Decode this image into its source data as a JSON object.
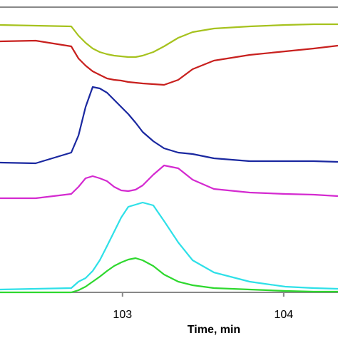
{
  "chart_data": {
    "type": "line",
    "x_label": "Time, min",
    "xlim": [
      102.24,
      104.337
    ],
    "xticks": [
      103,
      104
    ],
    "ylim": [
      0,
      100
    ],
    "x": [
      102.24,
      102.461,
      102.682,
      102.727,
      102.771,
      102.815,
      102.859,
      102.904,
      102.948,
      102.992,
      103.036,
      103.081,
      103.125,
      103.191,
      103.258,
      103.346,
      103.435,
      103.567,
      103.789,
      104.01,
      104.187,
      104.337
    ],
    "series": [
      {
        "color": "#a6c21e",
        "values": [
          93.75,
          93.5,
          93.25,
          90,
          87.5,
          85.5,
          84.25,
          83.5,
          83,
          82.75,
          82.5,
          82.5,
          83,
          84.25,
          86.25,
          89.25,
          91.25,
          92.5,
          93.25,
          93.75,
          94,
          94
        ]
      },
      {
        "color": "#c8201e",
        "values": [
          88,
          88.25,
          86.25,
          82,
          79.5,
          77.5,
          76.25,
          75,
          74.5,
          74.25,
          73.75,
          73.5,
          73.25,
          73,
          72.75,
          74.5,
          78.25,
          81.25,
          83.25,
          84.5,
          85.5,
          86.5
        ]
      },
      {
        "color": "#1a28a0",
        "values": [
          45.5,
          45.25,
          49,
          55,
          65,
          72,
          71.5,
          70,
          67.5,
          65,
          62.5,
          59.5,
          56.25,
          53,
          50.5,
          49,
          48.5,
          47,
          46,
          46,
          46,
          45.75
        ]
      },
      {
        "color": "#d42ad0",
        "values": [
          33,
          33,
          34.5,
          37,
          40,
          40.75,
          40,
          39,
          37,
          35.75,
          35.5,
          36,
          37.5,
          41.25,
          44.5,
          43.5,
          39.5,
          36.25,
          35,
          34.5,
          34.25,
          33.75
        ]
      },
      {
        "color": "#2ee0e8",
        "values": [
          1,
          1.25,
          1.5,
          3.75,
          5,
          7.5,
          11.25,
          16.25,
          21.25,
          26.25,
          30,
          30.75,
          31.5,
          30.5,
          25,
          17.5,
          11.25,
          7,
          3.75,
          2,
          1.5,
          1.25
        ]
      },
      {
        "color": "#2ed82e",
        "values": [
          0,
          0,
          0,
          0.75,
          2,
          3.75,
          5.5,
          7.5,
          9.25,
          10.5,
          11.5,
          12,
          11.25,
          9.25,
          6.25,
          3.75,
          2.5,
          1.5,
          1,
          0.5,
          0.25,
          0.25
        ]
      }
    ]
  }
}
